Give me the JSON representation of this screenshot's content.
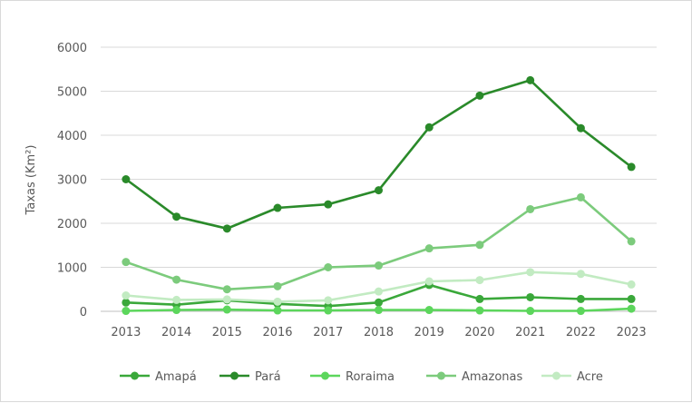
{
  "chart_data": {
    "type": "line",
    "title": "",
    "xlabel": "",
    "ylabel": "Taxas (Km²)",
    "ylim": [
      0,
      6000
    ],
    "y_ticks": [
      0,
      1000,
      2000,
      3000,
      4000,
      5000,
      6000
    ],
    "y_tick_labels": [
      "0",
      "1000",
      "2000",
      "3000",
      "4000",
      "5000",
      "6000"
    ],
    "grid": "horizontal",
    "legend_position": "bottom",
    "categories": [
      "2013",
      "2014",
      "2015",
      "2016",
      "2017",
      "2018",
      "2019",
      "2020",
      "2021",
      "2022",
      "2023"
    ],
    "series": [
      {
        "name": "Amapá",
        "color": "#3aa83a",
        "values": [
          200,
          150,
          250,
          170,
          120,
          200,
          600,
          280,
          320,
          280,
          280
        ]
      },
      {
        "name": "Pará",
        "color": "#2a8a2a",
        "values": [
          3000,
          2150,
          1880,
          2350,
          2430,
          2750,
          4180,
          4900,
          5250,
          4160,
          3280
        ]
      },
      {
        "name": "Roraima",
        "color": "#5cd65c",
        "values": [
          10,
          30,
          40,
          20,
          20,
          30,
          30,
          20,
          10,
          10,
          60
        ]
      },
      {
        "name": "Amazonas",
        "color": "#7ccb7c",
        "values": [
          1120,
          720,
          500,
          570,
          1000,
          1040,
          1430,
          1510,
          2320,
          2590,
          1590
        ]
      },
      {
        "name": "Acre",
        "color": "#c2ebc2",
        "values": [
          360,
          260,
          270,
          220,
          250,
          450,
          680,
          710,
          890,
          850,
          610
        ]
      }
    ]
  }
}
